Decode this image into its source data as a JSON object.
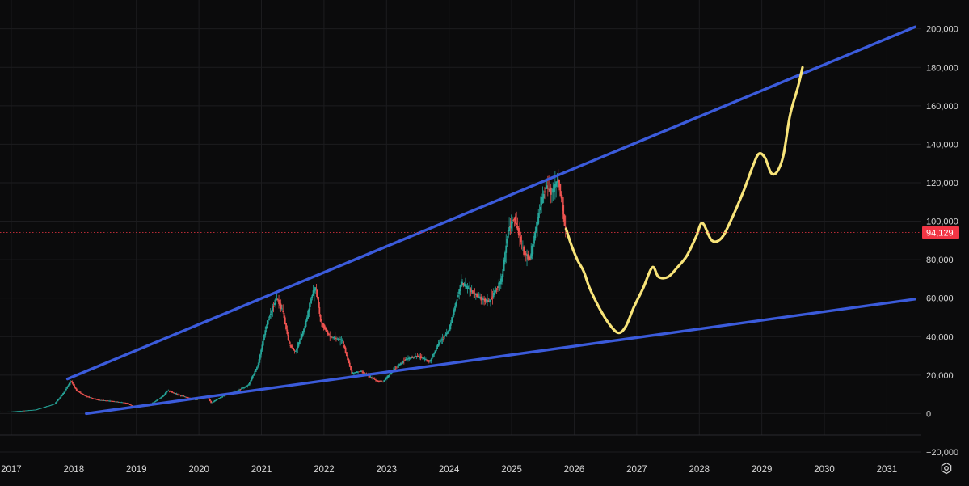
{
  "chart_data": {
    "type": "candlestick",
    "title": "",
    "xlabel": "",
    "ylabel": "",
    "x_range": [
      2016.82,
      2031.55
    ],
    "y_range": [
      -28000,
      215000
    ],
    "grid": true,
    "y_ticks": [
      200000,
      180000,
      160000,
      140000,
      120000,
      100000,
      80000,
      60000,
      40000,
      20000,
      0,
      -20000
    ],
    "y_tick_labels": [
      "200,000",
      "180,000",
      "160,000",
      "140,000",
      "120,000",
      "100,000",
      "80,000",
      "60,000",
      "40,000",
      "20,000",
      "0",
      "−20,000"
    ],
    "x_ticks": [
      2017,
      2018,
      2019,
      2020,
      2021,
      2022,
      2023,
      2024,
      2025,
      2026,
      2027,
      2028,
      2029,
      2030,
      2031
    ],
    "x_tick_labels": [
      "2017",
      "2018",
      "2019",
      "2020",
      "2021",
      "2022",
      "2023",
      "2024",
      "2025",
      "2026",
      "2027",
      "2028",
      "2029",
      "2030",
      "2031"
    ],
    "current_price": {
      "value": 94129,
      "label": "94,129",
      "color": "#f23645"
    },
    "price_anchors": [
      [
        2016.82,
        1000
      ],
      [
        2017.0,
        1000
      ],
      [
        2017.4,
        2000
      ],
      [
        2017.7,
        5000
      ],
      [
        2017.85,
        11000
      ],
      [
        2017.96,
        17000
      ],
      [
        2018.05,
        12000
      ],
      [
        2018.2,
        9000
      ],
      [
        2018.4,
        7000
      ],
      [
        2018.6,
        6500
      ],
      [
        2018.85,
        5500
      ],
      [
        2018.95,
        3800
      ],
      [
        2019.2,
        4000
      ],
      [
        2019.45,
        9500
      ],
      [
        2019.5,
        12000
      ],
      [
        2019.7,
        9500
      ],
      [
        2019.95,
        7200
      ],
      [
        2020.15,
        9000
      ],
      [
        2020.2,
        5500
      ],
      [
        2020.4,
        9300
      ],
      [
        2020.6,
        11500
      ],
      [
        2020.8,
        15000
      ],
      [
        2020.95,
        25000
      ],
      [
        2021.1,
        48000
      ],
      [
        2021.25,
        60000
      ],
      [
        2021.35,
        53000
      ],
      [
        2021.45,
        36000
      ],
      [
        2021.55,
        32000
      ],
      [
        2021.7,
        45000
      ],
      [
        2021.82,
        62000
      ],
      [
        2021.88,
        66000
      ],
      [
        2021.95,
        48000
      ],
      [
        2022.1,
        40000
      ],
      [
        2022.3,
        38000
      ],
      [
        2022.45,
        21000
      ],
      [
        2022.6,
        22000
      ],
      [
        2022.85,
        17000
      ],
      [
        2022.95,
        16500
      ],
      [
        2023.1,
        22000
      ],
      [
        2023.3,
        28000
      ],
      [
        2023.5,
        30000
      ],
      [
        2023.7,
        27000
      ],
      [
        2023.85,
        37000
      ],
      [
        2024.0,
        43000
      ],
      [
        2024.2,
        68000
      ],
      [
        2024.35,
        64000
      ],
      [
        2024.5,
        60000
      ],
      [
        2024.65,
        58000
      ],
      [
        2024.85,
        70000
      ],
      [
        2024.95,
        95000
      ],
      [
        2025.05,
        102000
      ],
      [
        2025.2,
        84000
      ],
      [
        2025.3,
        80000
      ],
      [
        2025.45,
        105000
      ],
      [
        2025.55,
        118000
      ],
      [
        2025.65,
        115000
      ],
      [
        2025.75,
        122000
      ],
      [
        2025.8,
        112000
      ],
      [
        2025.87,
        94129
      ]
    ],
    "upper_trendline": {
      "start": [
        2017.9,
        18000
      ],
      "end": [
        2031.45,
        201000
      ],
      "color": "#3b5bdb"
    },
    "lower_trendline": {
      "start": [
        2018.2,
        0
      ],
      "end": [
        2031.45,
        59500
      ],
      "color": "#3b5bdb"
    },
    "projection": {
      "color": "#f8e479",
      "points": [
        [
          2025.87,
          96000
        ],
        [
          2025.95,
          88000
        ],
        [
          2026.05,
          80000
        ],
        [
          2026.15,
          74000
        ],
        [
          2026.25,
          65000
        ],
        [
          2026.4,
          55000
        ],
        [
          2026.55,
          47000
        ],
        [
          2026.7,
          42000
        ],
        [
          2026.82,
          45000
        ],
        [
          2026.95,
          55000
        ],
        [
          2027.1,
          65000
        ],
        [
          2027.25,
          76000
        ],
        [
          2027.35,
          71000
        ],
        [
          2027.5,
          71000
        ],
        [
          2027.65,
          76000
        ],
        [
          2027.8,
          82000
        ],
        [
          2027.95,
          92000
        ],
        [
          2028.05,
          99000
        ],
        [
          2028.2,
          90000
        ],
        [
          2028.35,
          91000
        ],
        [
          2028.5,
          100000
        ],
        [
          2028.7,
          115000
        ],
        [
          2028.85,
          128000
        ],
        [
          2028.95,
          135000
        ],
        [
          2029.05,
          133000
        ],
        [
          2029.15,
          125000
        ],
        [
          2029.25,
          126000
        ],
        [
          2029.35,
          135000
        ],
        [
          2029.45,
          155000
        ],
        [
          2029.58,
          170000
        ],
        [
          2029.65,
          180000
        ]
      ]
    }
  }
}
